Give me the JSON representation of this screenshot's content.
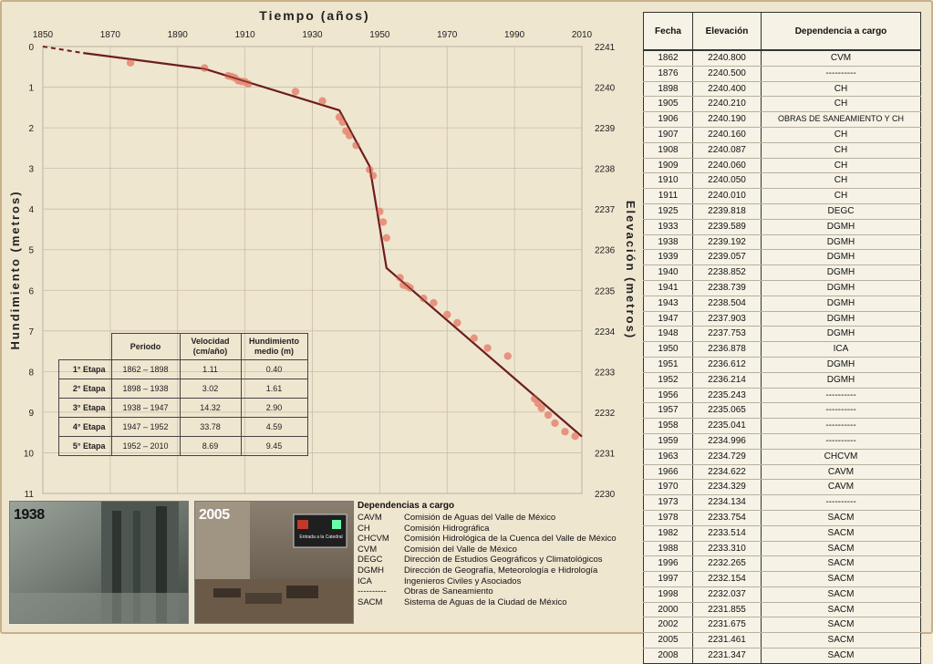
{
  "chart_data": {
    "type": "line",
    "title": "Tiempo (años)",
    "ylabel": "Hundimiento (metros)",
    "y2label": "Elevación (metros)",
    "xlim": [
      1850,
      2010
    ],
    "ylim": [
      0,
      11
    ],
    "y2lim": [
      2241,
      2230
    ],
    "x_ticks": [
      1850,
      1870,
      1890,
      1910,
      1930,
      1950,
      1970,
      1990,
      2010
    ],
    "y_ticks": [
      0,
      1,
      2,
      3,
      4,
      5,
      6,
      7,
      8,
      9,
      10,
      11
    ],
    "y2_ticks": [
      2241,
      2240,
      2239,
      2238,
      2237,
      2236,
      2235,
      2234,
      2233,
      2232,
      2231,
      2230
    ],
    "grid": true,
    "series": [
      {
        "type": "line",
        "color": "#6e1d1d",
        "x": [
          1862,
          1898,
          1938,
          1947,
          1952,
          2010
        ],
        "y": [
          0.16,
          0.55,
          1.57,
          2.95,
          5.45,
          9.6
        ]
      },
      {
        "type": "scatter",
        "color": "#e58b76",
        "x": [
          1876,
          1898,
          1905,
          1906,
          1907,
          1908,
          1909,
          1910,
          1911,
          1925,
          1933,
          1938,
          1939,
          1940,
          1941,
          1943,
          1947,
          1948,
          1950,
          1951,
          1952,
          1956,
          1957,
          1958,
          1959,
          1963,
          1966,
          1970,
          1973,
          1978,
          1982,
          1988,
          1996,
          1997,
          1998,
          2000,
          2002,
          2005,
          2008
        ],
        "y": [
          0.4,
          0.53,
          0.72,
          0.74,
          0.77,
          0.84,
          0.86,
          0.87,
          0.92,
          1.11,
          1.34,
          1.74,
          1.86,
          2.08,
          2.19,
          2.43,
          3.03,
          3.18,
          4.06,
          4.32,
          4.71,
          5.69,
          5.87,
          5.89,
          5.94,
          6.2,
          6.31,
          6.6,
          6.8,
          7.18,
          7.42,
          7.62,
          8.67,
          8.78,
          8.9,
          9.07,
          9.27,
          9.48,
          9.59
        ]
      }
    ]
  },
  "stage_table": {
    "headers": [
      "Periodo",
      "Velocidad (cm/año)",
      "Hundimiento medio (m)"
    ],
    "rows": [
      {
        "stage": "1° Etapa",
        "period": "1862 – 1898",
        "speed": "1.11",
        "sink": "0.40"
      },
      {
        "stage": "2° Etapa",
        "period": "1898 – 1938",
        "speed": "3.02",
        "sink": "1.61"
      },
      {
        "stage": "3° Etapa",
        "period": "1938 – 1947",
        "speed": "14.32",
        "sink": "2.90"
      },
      {
        "stage": "4° Etapa",
        "period": "1947 – 1952",
        "speed": "33.78",
        "sink": "4.59"
      },
      {
        "stage": "5° Etapa",
        "period": "1952 – 2010",
        "speed": "8.69",
        "sink": "9.45"
      }
    ]
  },
  "data_table": {
    "headers": [
      "Fecha",
      "Elevación",
      "Dependencia a cargo"
    ],
    "rows": [
      [
        "1862",
        "2240.800",
        "CVM"
      ],
      [
        "1876",
        "2240.500",
        "----------"
      ],
      [
        "1898",
        "2240.400",
        "CH"
      ],
      [
        "1905",
        "2240.210",
        "CH"
      ],
      [
        "1906",
        "2240.190",
        "OBRAS DE SANEAMIENTO Y CH"
      ],
      [
        "1907",
        "2240.160",
        "CH"
      ],
      [
        "1908",
        "2240.087",
        "CH"
      ],
      [
        "1909",
        "2240.060",
        "CH"
      ],
      [
        "1910",
        "2240.050",
        "CH"
      ],
      [
        "1911",
        "2240.010",
        "CH"
      ],
      [
        "1925",
        "2239.818",
        "DEGC"
      ],
      [
        "1933",
        "2239.589",
        "DGMH"
      ],
      [
        "1938",
        "2239.192",
        "DGMH"
      ],
      [
        "1939",
        "2239.057",
        "DGMH"
      ],
      [
        "1940",
        "2238.852",
        "DGMH"
      ],
      [
        "1941",
        "2238.739",
        "DGMH"
      ],
      [
        "1943",
        "2238.504",
        "DGMH"
      ],
      [
        "1947",
        "2237.903",
        "DGMH"
      ],
      [
        "1948",
        "2237.753",
        "DGMH"
      ],
      [
        "1950",
        "2236.878",
        "ICA"
      ],
      [
        "1951",
        "2236.612",
        "DGMH"
      ],
      [
        "1952",
        "2236.214",
        "DGMH"
      ],
      [
        "1956",
        "2235.243",
        "----------"
      ],
      [
        "1957",
        "2235.065",
        "----------"
      ],
      [
        "1958",
        "2235.041",
        "----------"
      ],
      [
        "1959",
        "2234.996",
        "----------"
      ],
      [
        "1963",
        "2234.729",
        "CHCVM"
      ],
      [
        "1966",
        "2234.622",
        "CAVM"
      ],
      [
        "1970",
        "2234.329",
        "CAVM"
      ],
      [
        "1973",
        "2234.134",
        "----------"
      ],
      [
        "1978",
        "2233.754",
        "SACM"
      ],
      [
        "1982",
        "2233.514",
        "SACM"
      ],
      [
        "1988",
        "2233.310",
        "SACM"
      ],
      [
        "1996",
        "2232.265",
        "SACM"
      ],
      [
        "1997",
        "2232.154",
        "SACM"
      ],
      [
        "1998",
        "2232.037",
        "SACM"
      ],
      [
        "2000",
        "2231.855",
        "SACM"
      ],
      [
        "2002",
        "2231.675",
        "SACM"
      ],
      [
        "2005",
        "2231.461",
        "SACM"
      ],
      [
        "2008",
        "2231.347",
        "SACM"
      ]
    ]
  },
  "photos": {
    "left_label": "1938",
    "right_label": "2005",
    "sign_text": "Entrada a la Catedral"
  },
  "legend": {
    "title": "Dependencias a cargo",
    "items": [
      {
        "abbr": "CAVM",
        "desc": "Comisión de Aguas del Valle de México"
      },
      {
        "abbr": "CH",
        "desc": "Comisión Hidrográfica"
      },
      {
        "abbr": "CHCVM",
        "desc": "Comisión Hidrológica de la Cuenca del Valle de México"
      },
      {
        "abbr": "CVM",
        "desc": "Comisión del Valle de México"
      },
      {
        "abbr": "DEGC",
        "desc": "Dirección de Estudios Geográficos y Climatológicos"
      },
      {
        "abbr": "DGMH",
        "desc": "Dirección de Geografía, Meteorología e Hidrología"
      },
      {
        "abbr": "ICA",
        "desc": "Ingenieros Civiles y Asociados"
      },
      {
        "abbr": "----------",
        "desc": "Obras de Saneamiento"
      },
      {
        "abbr": "SACM",
        "desc": "Sistema de Aguas de la Ciudad de México"
      }
    ]
  }
}
